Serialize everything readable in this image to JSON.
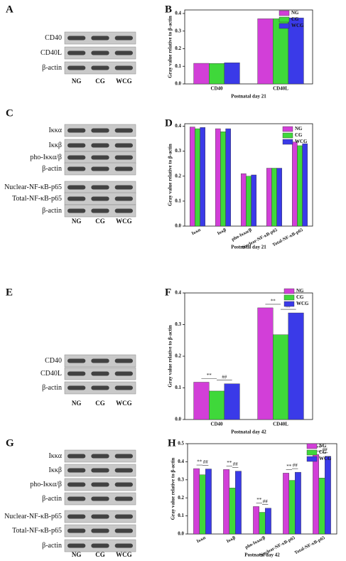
{
  "blots": [
    {
      "label": "A",
      "groups": [
        [
          "CD40",
          "CD40L",
          "β-actin"
        ]
      ],
      "lanes": [
        "NG",
        "CG",
        "WCG"
      ]
    },
    {
      "label": "C",
      "groups": [
        [
          "Iκκα",
          "Iκκβ",
          "pho-Iκκα/β",
          "β-actin"
        ],
        [
          "Nuclear-NF-κB-p65",
          "Total-NF-κB-p65",
          "β-actin"
        ]
      ],
      "lanes": [
        "NG",
        "CG",
        "WCG"
      ]
    },
    {
      "label": "E",
      "groups": [
        [
          "CD40",
          "CD40L",
          "β-actin"
        ]
      ],
      "lanes": [
        "NG",
        "CG",
        "WCG"
      ]
    },
    {
      "label": "G",
      "groups": [
        [
          "Iκκα",
          "Iκκβ",
          "pho-Iκκα/β",
          "β-actin"
        ],
        [
          "Nuclear-NF-κB-p65",
          "Total-NF-κB-p65",
          "β-actin"
        ]
      ],
      "lanes": [
        "NG",
        "CG",
        "WCG"
      ]
    }
  ],
  "chart_data": [
    {
      "type": "bar",
      "label": "B",
      "ylabel": "Gray value relative to β-actin",
      "xlabel": "Postnatal day 21",
      "categories": [
        "CD40",
        "CD40L"
      ],
      "series": [
        {
          "name": "NG",
          "color": "#d23fd8",
          "values": [
            0.117,
            0.37
          ]
        },
        {
          "name": "CG",
          "color": "#3fd83a",
          "values": [
            0.116,
            0.37
          ]
        },
        {
          "name": "WCG",
          "color": "#3a3ae8",
          "values": [
            0.12,
            0.375
          ]
        }
      ],
      "ylim": [
        0,
        0.42
      ],
      "yticks": [
        {
          "value": 0,
          "label": "0.0"
        },
        0.1,
        0.2,
        0.3,
        0.4
      ]
    },
    {
      "type": "bar",
      "label": "D",
      "ylabel": "Gray value relative to β-actin",
      "xlabel": "Postnatal day 21",
      "categories": [
        "Iκκα",
        "Iκκβ",
        "pho-Iκκα/β",
        "Nuclear-NF-κB-p65",
        "Total-NF-κB-p65"
      ],
      "series": [
        {
          "name": "NG",
          "color": "#d23fd8",
          "values": [
            0.397,
            0.39,
            0.21,
            0.232,
            0.337
          ]
        },
        {
          "name": "CG",
          "color": "#3fd83a",
          "values": [
            0.39,
            0.378,
            0.2,
            0.232,
            0.322
          ]
        },
        {
          "name": "WCG",
          "color": "#3a3ae8",
          "values": [
            0.395,
            0.39,
            0.205,
            0.232,
            0.33
          ]
        }
      ],
      "ylim": [
        0,
        0.41
      ],
      "yticks": [
        {
          "value": 0,
          "label": "0.0"
        },
        0.1,
        0.2,
        0.3,
        0.4
      ]
    },
    {
      "type": "bar",
      "label": "F",
      "ylabel": "Gray value relative to β-actin",
      "xlabel": "Postnatal day 42",
      "categories": [
        "CD40",
        "CD40L"
      ],
      "series": [
        {
          "name": "NG",
          "color": "#d23fd8",
          "values": [
            0.118,
            0.353
          ]
        },
        {
          "name": "CG",
          "color": "#3fd83a",
          "values": [
            0.09,
            0.268
          ]
        },
        {
          "name": "WCG",
          "color": "#3a3ae8",
          "values": [
            0.113,
            0.337
          ]
        }
      ],
      "sig_ng_cg": [
        "**",
        "**"
      ],
      "sig_cg_wcg": [
        "##",
        "##"
      ],
      "ylim": [
        0,
        0.4
      ],
      "yticks": [
        {
          "value": 0,
          "label": "0.0"
        },
        0.1,
        0.2,
        0.3,
        0.4
      ]
    },
    {
      "type": "bar",
      "label": "H",
      "ylabel": "Gray value relative to β-actin",
      "xlabel": "Postnatal day 42",
      "categories": [
        "Iκκα",
        "Iκκβ",
        "pho-Iκκα/β",
        "Nuclear-NF-κB-p65",
        "Total-NF-κB-p65"
      ],
      "series": [
        {
          "name": "NG",
          "color": "#d23fd8",
          "values": [
            0.362,
            0.357,
            0.152,
            0.337,
            0.44
          ]
        },
        {
          "name": "CG",
          "color": "#3fd83a",
          "values": [
            0.328,
            0.255,
            0.12,
            0.297,
            0.31
          ]
        },
        {
          "name": "WCG",
          "color": "#3a3ae8",
          "values": [
            0.36,
            0.348,
            0.143,
            0.342,
            0.43
          ]
        }
      ],
      "sig_ng_cg": [
        "**",
        "**",
        "**",
        "**",
        "**"
      ],
      "sig_cg_wcg": [
        "##",
        "##",
        "##",
        "##",
        "##"
      ],
      "ylim": [
        0,
        0.5
      ],
      "yticks": [
        {
          "value": 0,
          "label": "0.0"
        },
        0.1,
        0.2,
        0.3,
        0.4,
        0.5
      ]
    }
  ]
}
